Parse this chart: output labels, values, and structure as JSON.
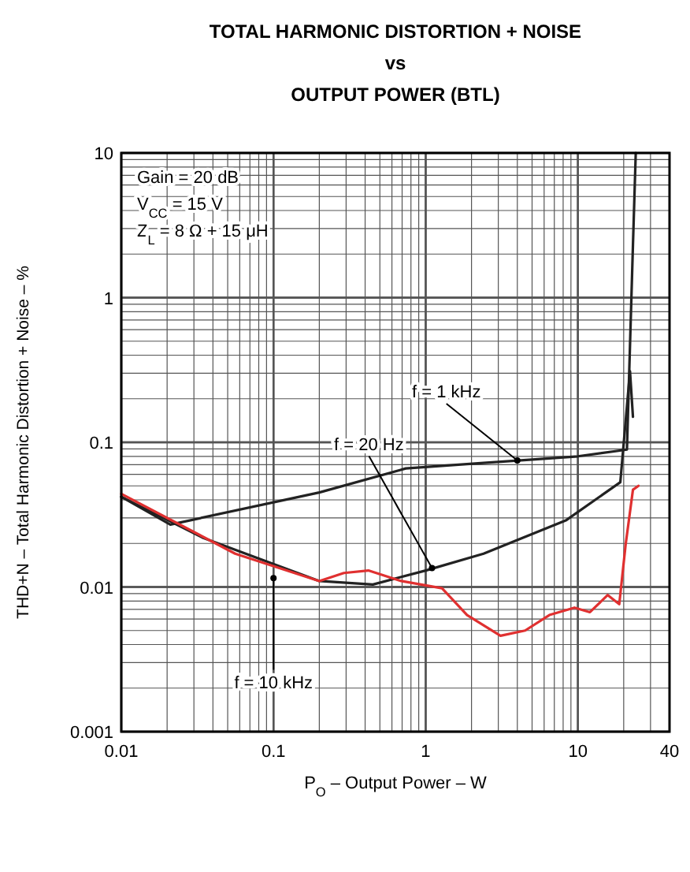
{
  "chart_data": {
    "type": "line",
    "title": "TOTAL HARMONIC DISTORTION + NOISE\nvs\nOUTPUT POWER (BTL)",
    "xlabel": "P$_{O}$ – Output Power – W",
    "ylabel": "THD+N – Total Harmonic Distortion + Noise – %",
    "log": "xy",
    "grid": true,
    "marker": "none",
    "line_style": "solid",
    "xlim": [
      0.01,
      40
    ],
    "xticks": [
      0.01,
      0.1,
      1,
      10,
      40
    ],
    "ylim": [
      0.001,
      10
    ],
    "yticks": [
      0.001,
      0.01,
      0.1,
      1,
      10
    ],
    "series": [
      {
        "color": "#222222",
        "x": [
          0.01,
          0.021,
          0.2,
          0.74,
          2.4,
          10,
          21,
          23,
          24
        ],
        "values": [
          0.042,
          0.027,
          0.045,
          0.066,
          0.072,
          0.08,
          0.089,
          2.3,
          10
        ]
      },
      {
        "color": "#222222",
        "x": [
          0.01,
          0.034,
          0.2,
          0.45,
          1,
          2.4,
          8.4,
          19,
          22,
          23
        ],
        "values": [
          0.042,
          0.022,
          0.011,
          0.0104,
          0.013,
          0.017,
          0.029,
          0.053,
          0.31,
          0.15
        ]
      },
      {
        "color": "#e03030",
        "x": [
          0.01,
          0.056,
          0.2,
          0.29,
          0.42,
          0.69,
          1.28,
          1.87,
          3.1,
          4.5,
          6.5,
          9.5,
          12,
          15.7,
          18.7,
          20.6,
          23,
          25
        ],
        "values": [
          0.044,
          0.017,
          0.011,
          0.0125,
          0.013,
          0.011,
          0.0098,
          0.0064,
          0.0046,
          0.005,
          0.0064,
          0.0072,
          0.0067,
          0.0088,
          0.0076,
          0.0197,
          0.047,
          0.05
        ]
      }
    ],
    "annotations": [
      "Gain = 20 dB",
      "V$_{CC}$ = 15 V",
      "Z$_{L}$ = 8 Ω + 15 μH",
      {
        "text": "f = 1 kHz",
        "x": 4,
        "y": 0.075
      },
      {
        "text": "f = 20 Hz",
        "x": 1.1,
        "y": 0.0135
      },
      {
        "text": "f = 10 kHz",
        "x": 0.1,
        "y": 0.0115
      }
    ]
  }
}
